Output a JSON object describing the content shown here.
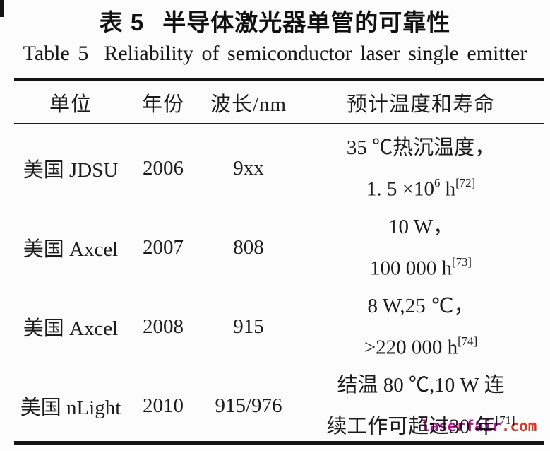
{
  "page": {
    "title_zh_label": "表 5",
    "title_zh_text": "半导体激光器单管的可靠性",
    "title_en_label": "Table 5",
    "title_en_text": "Reliability of semiconductor laser single emitter",
    "watermark": {
      "text_main": "laserfair",
      "text_suffix": ".com",
      "color_main": "#b5108f",
      "color_suffix": "#e03424"
    }
  },
  "table": {
    "headers": [
      "单位",
      "年份",
      "波长/nm",
      "预计温度和寿命"
    ],
    "rows": [
      {
        "unit": "美国 JDSU",
        "year": "2006",
        "wavelength": "9xx",
        "life": [
          [
            {
              "t": "35 ℃热沉温度，"
            }
          ],
          [
            {
              "t": "1. 5 ×10"
            },
            {
              "s": "6"
            },
            {
              "t": " h"
            },
            {
              "s": "[72]"
            }
          ]
        ]
      },
      {
        "unit": "美国 Axcel",
        "year": "2007",
        "wavelength": "808",
        "life": [
          [
            {
              "t": "10 W，"
            }
          ],
          [
            {
              "t": "100 000 h"
            },
            {
              "s": "[73]"
            }
          ]
        ]
      },
      {
        "unit": "美国 Axcel",
        "year": "2008",
        "wavelength": "915",
        "life": [
          [
            {
              "t": "8 W,25 ℃，"
            }
          ],
          [
            {
              "t": ">220 000 h"
            },
            {
              "s": "[74]"
            }
          ]
        ]
      },
      {
        "unit": "美国 nLight",
        "year": "2010",
        "wavelength": "915/976",
        "life": [
          [
            {
              "t": "结温 80 ℃,10 W 连"
            }
          ],
          [
            {
              "t": "续工作可超过30 年"
            },
            {
              "s": "[71]"
            }
          ]
        ]
      }
    ]
  }
}
